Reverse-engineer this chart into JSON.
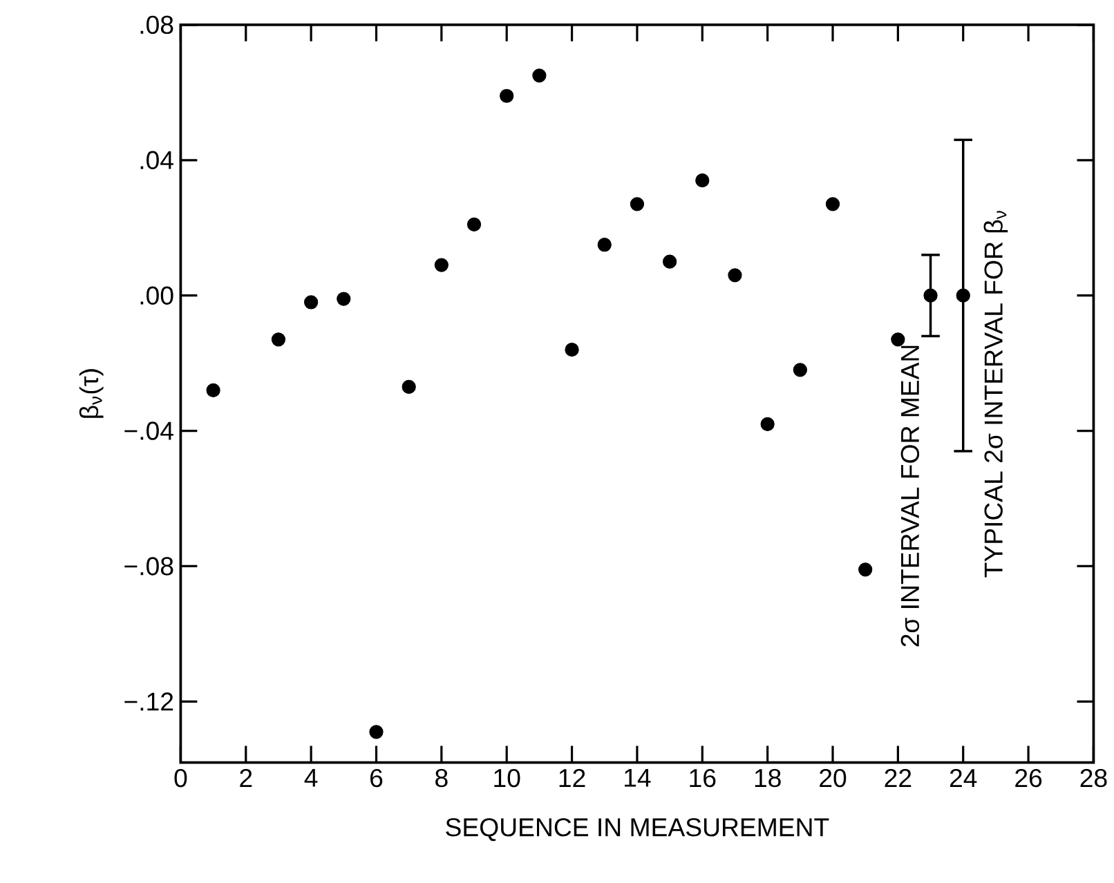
{
  "chart_data": {
    "type": "scatter",
    "xlabel": "SEQUENCE IN MEASUREMENT",
    "ylabel": "β$_{ν}$(τ)",
    "x": [
      1,
      3,
      4,
      5,
      6,
      7,
      8,
      9,
      10,
      11,
      12,
      13,
      14,
      15,
      16,
      17,
      18,
      19,
      20,
      21,
      22,
      23,
      24
    ],
    "values": [
      -0.028,
      -0.013,
      -0.002,
      -0.001,
      -0.129,
      -0.027,
      0.009,
      0.021,
      0.059,
      0.065,
      -0.016,
      0.015,
      0.027,
      0.01,
      0.034,
      0.006,
      -0.038,
      -0.022,
      0.027,
      -0.081,
      -0.013,
      0.0,
      0.0
    ],
    "errors": [
      null,
      null,
      null,
      null,
      null,
      null,
      null,
      null,
      null,
      null,
      null,
      null,
      null,
      null,
      null,
      null,
      null,
      null,
      null,
      null,
      null,
      0.012,
      0.046
    ],
    "color": "#000000",
    "marker": "circle",
    "xlim": [
      0,
      28
    ],
    "xticks": [
      0,
      2,
      4,
      6,
      8,
      10,
      12,
      14,
      16,
      18,
      20,
      22,
      24,
      26,
      28
    ],
    "ylim": [
      -0.138,
      0.08
    ],
    "yticks": [
      {
        "value": -0.12,
        "label": "−.12"
      },
      {
        "value": -0.08,
        "label": "−.08"
      },
      {
        "value": -0.04,
        "label": "−.04"
      },
      {
        "value": 0,
        "label": ".00"
      },
      {
        "value": 0.04,
        "label": ".04"
      },
      {
        "value": 0.08,
        "label": ".08"
      }
    ],
    "annotations": [
      "2σ INTERVAL FOR MEAN",
      "TYPICAL 2σ INTERVAL FOR β$_{ν}$"
    ]
  }
}
